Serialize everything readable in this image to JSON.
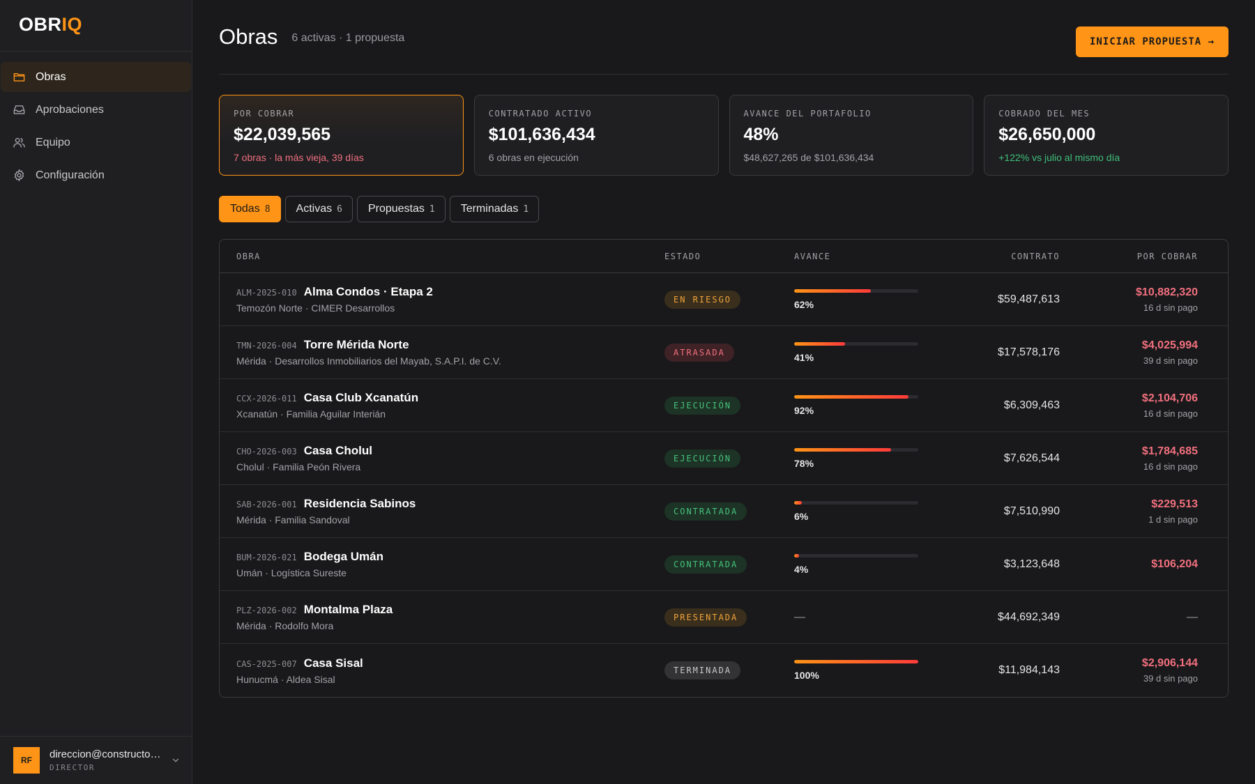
{
  "logo": {
    "part1": "OBR",
    "part2": "IQ"
  },
  "sidebar": {
    "items": [
      {
        "label": "Obras",
        "icon": "folder-icon",
        "active": true
      },
      {
        "label": "Aprobaciones",
        "icon": "inbox-icon",
        "active": false
      },
      {
        "label": "Equipo",
        "icon": "users-icon",
        "active": false
      },
      {
        "label": "Configuración",
        "icon": "gear-icon",
        "active": false
      }
    ],
    "user": {
      "initials": "RF",
      "email": "direccion@constructora.mx",
      "role": "DIRECTOR"
    }
  },
  "header": {
    "title": "Obras",
    "subtitle": "6 activas · 1 propuesta",
    "cta_label": "INICIAR PROPUESTA →"
  },
  "kpis": [
    {
      "label": "POR COBRAR",
      "value": "$22,039,565",
      "note": "7 obras · la más vieja, 39 días"
    },
    {
      "label": "CONTRATADO ACTIVO",
      "value": "$101,636,434",
      "note": "6 obras en ejecución"
    },
    {
      "label": "AVANCE DEL PORTAFOLIO",
      "value": "48%",
      "note": "$48,627,265 de $101,636,434"
    },
    {
      "label": "COBRADO DEL MES",
      "value": "$26,650,000",
      "note": "+122% vs julio al mismo día"
    }
  ],
  "tabs": [
    {
      "label": "Todas",
      "count": "8"
    },
    {
      "label": "Activas",
      "count": "6"
    },
    {
      "label": "Propuestas",
      "count": "1"
    },
    {
      "label": "Terminadas",
      "count": "1"
    }
  ],
  "table": {
    "headers": {
      "obra": "OBRA",
      "estado": "ESTADO",
      "avance": "AVANCE",
      "contrato": "CONTRATO",
      "cobrar": "POR COBRAR"
    },
    "rows": [
      {
        "code": "ALM-2025-010",
        "name": "Alma Condos · Etapa 2",
        "sub": "Temozón Norte · CIMER Desarrollos",
        "status": "EN RIESGO",
        "progress": 62,
        "progress_label": "62%",
        "contrato": "$59,487,613",
        "cobrar": "$10,882,320",
        "cobrar_note": "16 d sin pago"
      },
      {
        "code": "TMN-2026-004",
        "name": "Torre Mérida Norte",
        "sub": "Mérida · Desarrollos Inmobiliarios del Mayab, S.A.P.I. de C.V.",
        "status": "ATRASADA",
        "progress": 41,
        "progress_label": "41%",
        "contrato": "$17,578,176",
        "cobrar": "$4,025,994",
        "cobrar_note": "39 d sin pago"
      },
      {
        "code": "CCX-2026-011",
        "name": "Casa Club Xcanatún",
        "sub": "Xcanatún · Familia Aguilar Interián",
        "status": "EJECUCIÓN",
        "progress": 92,
        "progress_label": "92%",
        "contrato": "$6,309,463",
        "cobrar": "$2,104,706",
        "cobrar_note": "16 d sin pago"
      },
      {
        "code": "CHO-2026-003",
        "name": "Casa Cholul",
        "sub": "Cholul · Familia Peón Rivera",
        "status": "EJECUCIÓN",
        "progress": 78,
        "progress_label": "78%",
        "contrato": "$7,626,544",
        "cobrar": "$1,784,685",
        "cobrar_note": "16 d sin pago"
      },
      {
        "code": "SAB-2026-001",
        "name": "Residencia Sabinos",
        "sub": "Mérida · Familia Sandoval",
        "status": "CONTRATADA",
        "progress": 6,
        "progress_label": "6%",
        "contrato": "$7,510,990",
        "cobrar": "$229,513",
        "cobrar_note": "1 d sin pago"
      },
      {
        "code": "BUM-2026-021",
        "name": "Bodega Umán",
        "sub": "Umán · Logística Sureste",
        "status": "CONTRATADA",
        "progress": 4,
        "progress_label": "4%",
        "contrato": "$3,123,648",
        "cobrar": "$106,204",
        "cobrar_note": ""
      },
      {
        "code": "PLZ-2026-002",
        "name": "Montalma Plaza",
        "sub": "Mérida · Rodolfo Mora",
        "status": "PRESENTADA",
        "progress": null,
        "progress_label": "—",
        "contrato": "$44,692,349",
        "cobrar": "—",
        "cobrar_note": ""
      },
      {
        "code": "CAS-2025-007",
        "name": "Casa Sisal",
        "sub": "Hunucmá · Aldea Sisal",
        "status": "TERMINADA",
        "progress": 100,
        "progress_label": "100%",
        "contrato": "$11,984,143",
        "cobrar": "$2,906,144",
        "cobrar_note": "39 d sin pago"
      }
    ]
  },
  "colors": {
    "accent": "#ff9416",
    "danger": "#f2707e",
    "success": "#3fc07a"
  }
}
